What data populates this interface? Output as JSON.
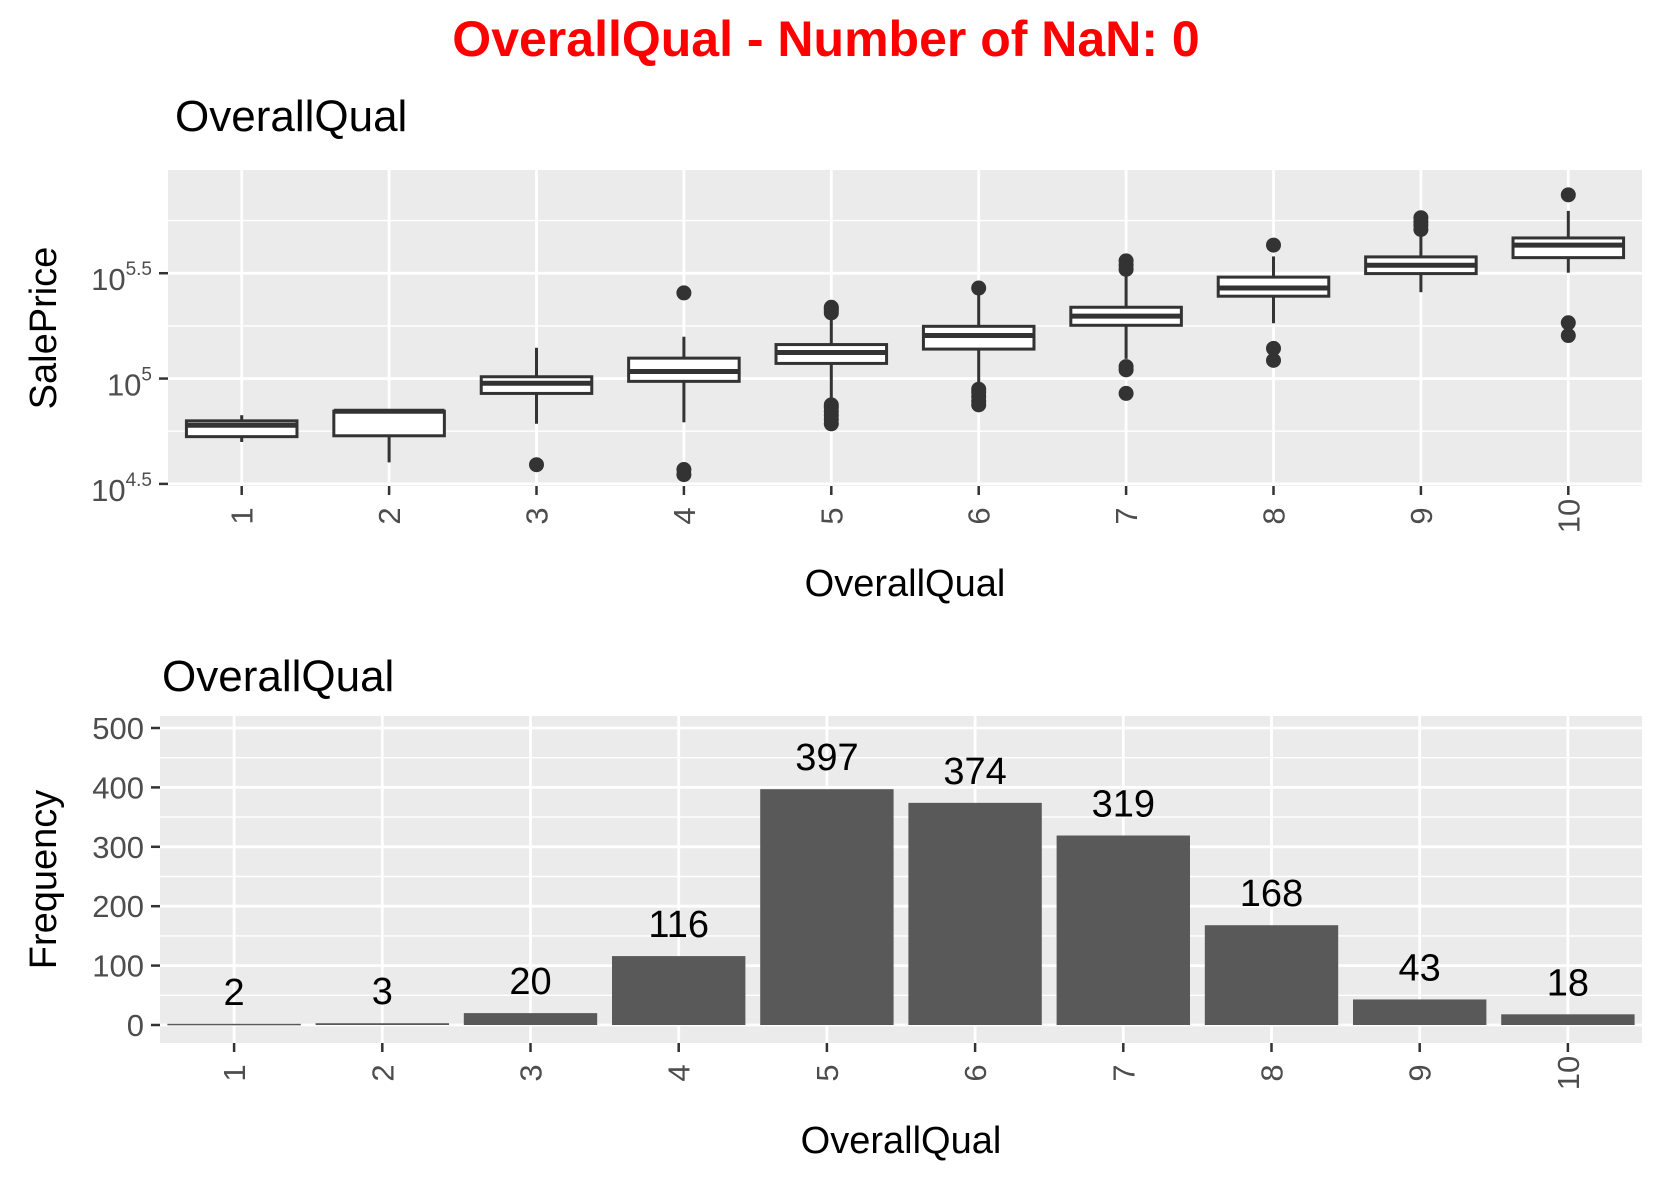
{
  "page_title": "OverallQual - Number of NaN: 0",
  "chart_data": [
    {
      "type": "box",
      "title": "OverallQual",
      "xlabel": "OverallQual",
      "ylabel": "SalePrice",
      "y_scale": "log10",
      "ylim_log10": [
        4.49,
        5.99
      ],
      "y_ticks": [
        {
          "base": "10",
          "exp": "4.5",
          "log10": 4.5
        },
        {
          "base": "10",
          "exp": "5",
          "log10": 5.0
        },
        {
          "base": "10",
          "exp": "5.5",
          "log10": 5.5
        }
      ],
      "categories": [
        "1",
        "2",
        "3",
        "4",
        "5",
        "6",
        "7",
        "8",
        "9",
        "10"
      ],
      "boxes": [
        {
          "category": "1",
          "whisker_low": 50000,
          "q1": 53000,
          "median": 60000,
          "q3": 63000,
          "whisker_high": 67000,
          "outliers": []
        },
        {
          "category": "2",
          "whisker_low": 40000,
          "q1": 53500,
          "median": 70000,
          "q3": 70000,
          "whisker_high": 70000,
          "outliers": []
        },
        {
          "category": "3",
          "whisker_low": 61000,
          "q1": 85000,
          "median": 95000,
          "q3": 102000,
          "whisker_high": 140000,
          "outliers": [
            39000
          ]
        },
        {
          "category": "4",
          "whisker_low": 62000,
          "q1": 97000,
          "median": 108000,
          "q3": 125000,
          "whisker_high": 158000,
          "outliers": [
            37000,
            35000,
            255000
          ]
        },
        {
          "category": "5",
          "whisker_low": 76000,
          "q1": 118000,
          "median": 133000,
          "q3": 145000,
          "whisker_high": 196000,
          "outliers": [
            61000,
            64000,
            67000,
            70000,
            73000,
            75000,
            205000,
            210000,
            215000,
            218000
          ]
        },
        {
          "category": "6",
          "whisker_low": 94000,
          "q1": 138000,
          "median": 160000,
          "q3": 177000,
          "whisker_high": 250000,
          "outliers": [
            75000,
            78000,
            82000,
            86000,
            89000,
            269000
          ]
        },
        {
          "category": "7",
          "whisker_low": 124000,
          "q1": 179000,
          "median": 198000,
          "q3": 218000,
          "whisker_high": 307000,
          "outliers": [
            85000,
            110000,
            114000,
            330000,
            345000,
            362000
          ]
        },
        {
          "category": "8",
          "whisker_low": 183000,
          "q1": 246000,
          "median": 269000,
          "q3": 303000,
          "whisker_high": 380000,
          "outliers": [
            122000,
            139000,
            430000
          ]
        },
        {
          "category": "9",
          "whisker_low": 257000,
          "q1": 315000,
          "median": 345000,
          "q3": 378000,
          "whisker_high": 480000,
          "outliers": [
            510000,
            535000,
            555000,
            580000
          ]
        },
        {
          "category": "10",
          "whisker_low": 318000,
          "q1": 375000,
          "median": 430000,
          "q3": 465000,
          "whisker_high": 625000,
          "outliers": [
            160000,
            184000,
            745000
          ]
        }
      ]
    },
    {
      "type": "bar",
      "title": "OverallQual",
      "xlabel": "OverallQual",
      "ylabel": "Frequency",
      "ylim": [
        0,
        500
      ],
      "y_ticks": [
        0,
        100,
        200,
        300,
        400,
        500
      ],
      "categories": [
        "1",
        "2",
        "3",
        "4",
        "5",
        "6",
        "7",
        "8",
        "9",
        "10"
      ],
      "values": [
        2,
        3,
        20,
        116,
        397,
        374,
        319,
        168,
        43,
        18
      ],
      "data_labels": [
        "2",
        "3",
        "20",
        "116",
        "397",
        "374",
        "319",
        "168",
        "43",
        "18"
      ]
    }
  ],
  "colors": {
    "title": "#ff0000",
    "panel_background": "#ebebeb",
    "grid": "#ffffff",
    "bar_fill": "#595959",
    "box_fill": "#ffffff",
    "box_line": "#333333",
    "tick_text": "#4d4d4d"
  }
}
